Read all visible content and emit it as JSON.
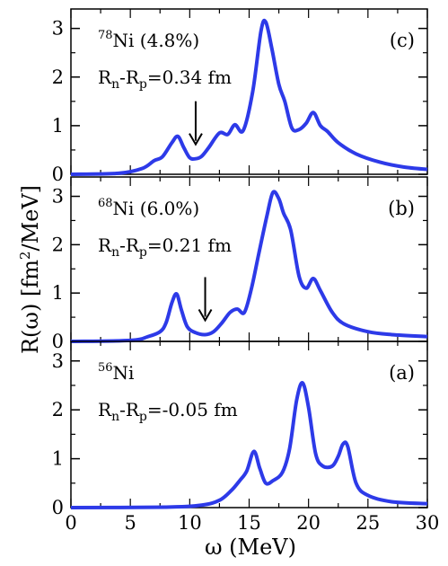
{
  "chart_data": {
    "type": "line",
    "shared_x_axis": {
      "label": "ω (MeV)",
      "range": [
        0,
        30
      ],
      "ticks": [
        "0",
        "5",
        "10",
        "15",
        "20",
        "25",
        "30"
      ]
    },
    "y_axis_label_parts": [
      "R(ω) [fm",
      "2",
      "/MeV]"
    ],
    "line_color": "#2d3ae8",
    "arrow_color": "#000000",
    "panels": [
      {
        "panel_label": "(c)",
        "nucleus": {
          "mass": "78",
          "symbol": "Ni",
          "fraction": " (4.8%)"
        },
        "radius_diff": {
          "n": "n",
          "sep": "-R",
          "p": "p",
          "rest": "=0.34 fm"
        },
        "y_range": [
          0,
          3.4
        ],
        "y_ticks": [
          "0",
          "1",
          "2",
          "3"
        ],
        "arrow_x": 10.5,
        "x": [
          0,
          4,
          6,
          7,
          7.7,
          8.5,
          9,
          9.5,
          10,
          10.5,
          11,
          11.6,
          12.5,
          13.2,
          13.8,
          14.5,
          15.3,
          16,
          16.4,
          16.9,
          17.5,
          18,
          18.6,
          19.2,
          19.8,
          20.4,
          21,
          21.6,
          22.5,
          24,
          26,
          28,
          30
        ],
        "y": [
          0,
          0.02,
          0.12,
          0.28,
          0.36,
          0.65,
          0.78,
          0.55,
          0.34,
          0.32,
          0.37,
          0.55,
          0.85,
          0.82,
          1.02,
          0.9,
          1.7,
          2.95,
          3.13,
          2.6,
          1.85,
          1.5,
          0.95,
          0.92,
          1.05,
          1.27,
          1.0,
          0.88,
          0.65,
          0.42,
          0.25,
          0.15,
          0.1
        ]
      },
      {
        "panel_label": "(b)",
        "nucleus": {
          "mass": "68",
          "symbol": "Ni",
          "fraction": " (6.0%)"
        },
        "radius_diff": {
          "n": "n",
          "sep": "-R",
          "p": "p",
          "rest": "=0.21 fm"
        },
        "y_range": [
          0,
          3.4
        ],
        "y_ticks": [
          "0",
          "1",
          "2",
          "3"
        ],
        "arrow_x": 11.3,
        "x": [
          0,
          5,
          6.5,
          7.5,
          8,
          8.5,
          8.9,
          9.3,
          9.8,
          10.5,
          11.3,
          12,
          12.7,
          13.4,
          14,
          14.6,
          15.2,
          15.8,
          16.5,
          17,
          17.5,
          17.9,
          18.5,
          19.2,
          19.8,
          20.4,
          21,
          22,
          23,
          25,
          27,
          30
        ],
        "y": [
          0,
          0.02,
          0.1,
          0.2,
          0.38,
          0.8,
          0.98,
          0.65,
          0.3,
          0.18,
          0.14,
          0.2,
          0.38,
          0.6,
          0.67,
          0.6,
          1.1,
          1.8,
          2.6,
          3.08,
          2.95,
          2.65,
          2.3,
          1.35,
          1.1,
          1.3,
          1.05,
          0.6,
          0.36,
          0.2,
          0.14,
          0.1
        ]
      },
      {
        "panel_label": "(a)",
        "nucleus": {
          "mass": "56",
          "symbol": "Ni",
          "fraction": ""
        },
        "radius_diff": {
          "n": "n",
          "sep": "-R",
          "p": "p",
          "rest": "=-0.05 fm"
        },
        "y_range": [
          0,
          3.4
        ],
        "y_ticks": [
          "0",
          "1",
          "2",
          "3"
        ],
        "arrow_x": null,
        "x": [
          0,
          8,
          11,
          12.5,
          13.5,
          14.2,
          14.8,
          15.4,
          15.9,
          16.4,
          17,
          17.8,
          18.4,
          19,
          19.5,
          20,
          20.6,
          21.2,
          22,
          22.5,
          22.9,
          23.3,
          24,
          25,
          27,
          30
        ],
        "y": [
          0,
          0.01,
          0.05,
          0.15,
          0.35,
          0.55,
          0.75,
          1.15,
          0.8,
          0.5,
          0.55,
          0.72,
          1.2,
          2.2,
          2.55,
          2.05,
          1.1,
          0.85,
          0.85,
          1.05,
          1.3,
          1.25,
          0.5,
          0.25,
          0.12,
          0.08
        ]
      }
    ]
  }
}
